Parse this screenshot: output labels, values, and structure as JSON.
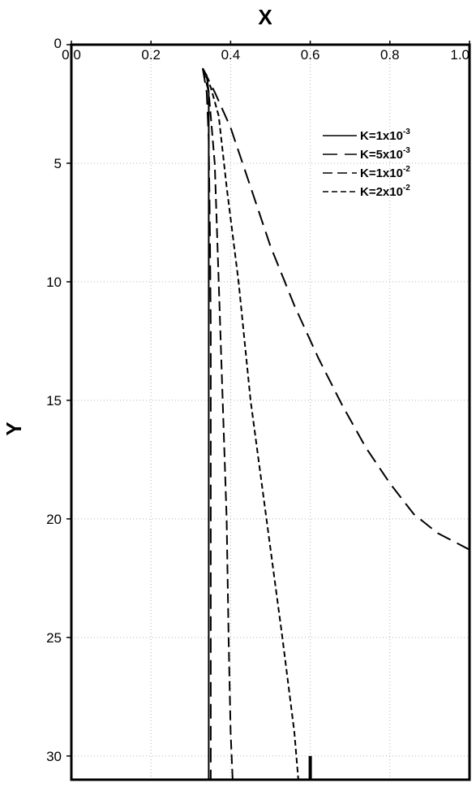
{
  "chart_data": {
    "type": "line",
    "xlabel": "X",
    "ylabel": "Y",
    "xlim": [
      0.0,
      1.0
    ],
    "ylim": [
      31,
      0
    ],
    "x_axis_position": "top",
    "y_axis_inverted": true,
    "x_ticks": [
      "0.0",
      "0.2",
      "0.4",
      "0.6",
      "0.8",
      "1.0"
    ],
    "y_ticks": [
      "0",
      "5",
      "10",
      "15",
      "20",
      "25",
      "30"
    ],
    "grid": true,
    "legend_position": "top-right",
    "series": [
      {
        "name": "K=1x10",
        "exponent": "-3",
        "dash": "solid",
        "points": [
          [
            0.33,
            1.0
          ],
          [
            0.34,
            1.3
          ],
          [
            0.345,
            2.0
          ],
          [
            0.345,
            5.0
          ],
          [
            0.345,
            10.0
          ],
          [
            0.345,
            20.0
          ],
          [
            0.345,
            31.0
          ]
        ]
      },
      {
        "name": "K=5x10",
        "exponent": "-3",
        "dash": "long-dash",
        "points": [
          [
            0.33,
            1.0
          ],
          [
            0.34,
            2.0
          ],
          [
            0.345,
            4.0
          ],
          [
            0.348,
            8.0
          ],
          [
            0.35,
            12.0
          ],
          [
            0.35,
            31.0
          ]
        ]
      },
      {
        "name": "K=1x10",
        "exponent": "-2",
        "dash": "medium-dash",
        "points": [
          [
            0.33,
            1.0
          ],
          [
            0.345,
            2.0
          ],
          [
            0.36,
            5.0
          ],
          [
            0.37,
            10.0
          ],
          [
            0.38,
            15.0
          ],
          [
            0.39,
            20.0
          ],
          [
            0.395,
            25.0
          ],
          [
            0.4,
            29.0
          ],
          [
            0.405,
            31.0
          ]
        ]
      },
      {
        "name": "K=2x10",
        "exponent": "-2",
        "dash": "short-dash",
        "points": [
          [
            0.33,
            1.0
          ],
          [
            0.35,
            1.8
          ],
          [
            0.37,
            3.0
          ],
          [
            0.39,
            6.0
          ],
          [
            0.42,
            10.0
          ],
          [
            0.45,
            15.0
          ],
          [
            0.49,
            20.0
          ],
          [
            0.53,
            25.0
          ],
          [
            0.56,
            29.0
          ],
          [
            0.57,
            31.0
          ]
        ]
      },
      {
        "name": "",
        "exponent": "",
        "dash": "long-dash",
        "points": [
          [
            0.33,
            1.0
          ],
          [
            0.36,
            2.0
          ],
          [
            0.4,
            3.5
          ],
          [
            0.45,
            6.0
          ],
          [
            0.5,
            8.5
          ],
          [
            0.56,
            11.0
          ],
          [
            0.62,
            13.2
          ],
          [
            0.68,
            15.2
          ],
          [
            0.74,
            17.0
          ],
          [
            0.8,
            18.5
          ],
          [
            0.86,
            19.8
          ],
          [
            0.92,
            20.6
          ],
          [
            1.0,
            21.3
          ]
        ]
      }
    ],
    "marker": {
      "x": 0.6,
      "y_start": 30.0,
      "y_end": 31.0
    }
  }
}
